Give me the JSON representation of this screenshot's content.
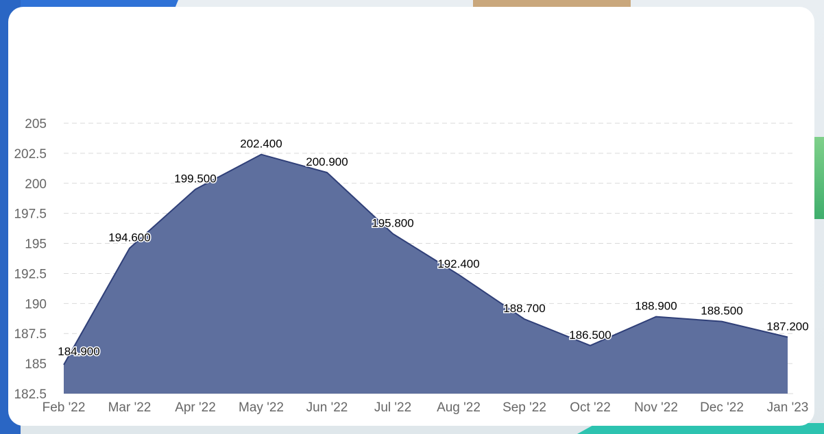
{
  "chart_data": {
    "type": "area",
    "categories": [
      "Feb '22",
      "Mar '22",
      "Apr '22",
      "May '22",
      "Jun '22",
      "Jul '22",
      "Aug '22",
      "Sep '22",
      "Oct '22",
      "Nov '22",
      "Dec '22",
      "Jan '23"
    ],
    "series": [
      {
        "values": [
          184.9,
          194.6,
          199.5,
          202.4,
          200.9,
          195.8,
          192.4,
          188.7,
          186.5,
          188.9,
          188.5,
          187.2
        ],
        "labels": [
          "184.900",
          "194.600",
          "199.500",
          "202.400",
          "200.900",
          "195.800",
          "192.400",
          "188.700",
          "186.500",
          "188.900",
          "188.500",
          "187.200"
        ]
      }
    ],
    "yticks": [
      "182.5",
      "185",
      "187.5",
      "190",
      "192.5",
      "195",
      "197.5",
      "200",
      "202.5",
      "205"
    ],
    "ylim": [
      182.5,
      205
    ],
    "grid": true,
    "colors": {
      "fill": "#5e6f9e",
      "line": "#2f3f78",
      "grid": "#d9d9d9"
    }
  }
}
